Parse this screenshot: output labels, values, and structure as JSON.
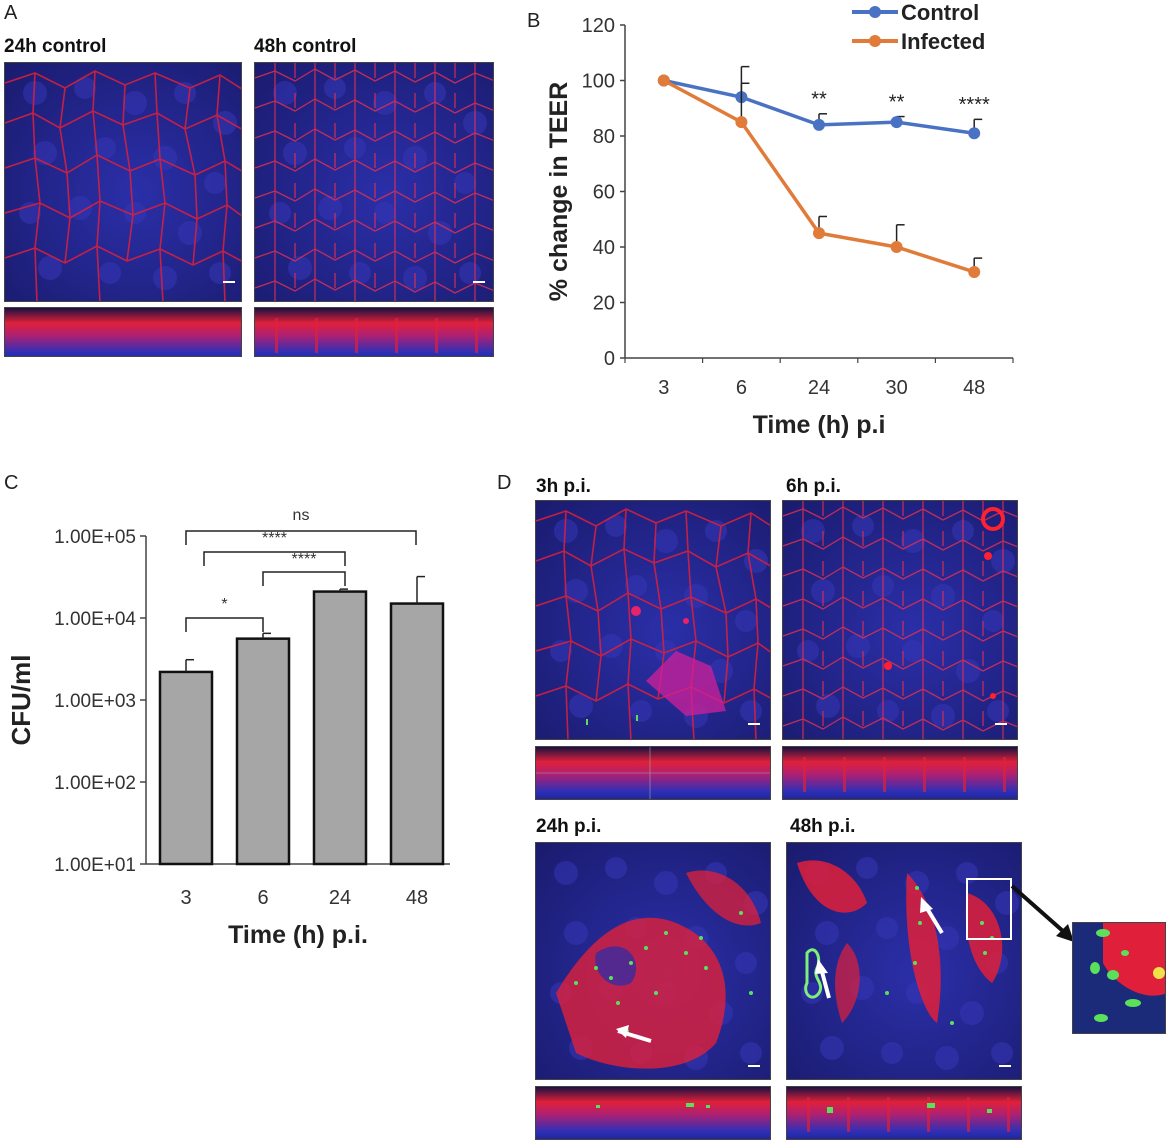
{
  "panels": {
    "a": {
      "letter": "A",
      "image_titles": [
        "24h control",
        "48h control"
      ]
    },
    "b": {
      "letter": "B",
      "significance": [
        "**",
        "**",
        "****"
      ]
    },
    "c": {
      "letter": "C",
      "significance": [
        {
          "text": "ns",
          "from": 0,
          "to": 3
        },
        {
          "text": "****",
          "from": 1,
          "to": 2
        },
        {
          "text": "****",
          "from": 1,
          "to": 2
        },
        {
          "text": "*",
          "from": 0,
          "to": 1
        }
      ]
    },
    "d": {
      "letter": "D",
      "image_titles": [
        "3h p.i.",
        "6h p.i.",
        "24h p.i.",
        "48h p.i."
      ]
    }
  },
  "colors": {
    "control": "#4a72c4",
    "infected": "#e07b39",
    "bar_fill": "#a6a6a6",
    "membrane": "#e0203a",
    "nucleus": "#2a2a9c",
    "bacteria": "#5be05b"
  },
  "chart_data": [
    {
      "type": "line",
      "panel": "B",
      "x": [
        "3",
        "6",
        "24",
        "30",
        "48"
      ],
      "xlabel": "Time (h) p.i",
      "ylabel": "% change in TEER",
      "ylim": [
        0,
        120
      ],
      "yticks": [
        0,
        20,
        40,
        60,
        80,
        100,
        120
      ],
      "legend": "top-right",
      "series": [
        {
          "name": "Control",
          "values": [
            100,
            94,
            84,
            85,
            81
          ],
          "error": [
            0,
            11,
            4,
            2,
            5
          ]
        },
        {
          "name": "Infected",
          "values": [
            100,
            85,
            45,
            40,
            31
          ],
          "error": [
            0,
            14,
            6,
            8,
            5
          ]
        }
      ]
    },
    {
      "type": "bar",
      "panel": "C",
      "categories": [
        "3",
        "6",
        "24",
        "48"
      ],
      "values": [
        2200,
        5600,
        21000,
        15000
      ],
      "error": [
        900,
        900,
        1500,
        17000
      ],
      "xlabel": "Time (h) p.i.",
      "ylabel": "CFU/ml",
      "yscale": "log",
      "ylim": [
        10,
        100000
      ],
      "yticks": [
        "1.00E+01",
        "1.00E+02",
        "1.00E+03",
        "1.00E+04",
        "1.00E+05"
      ]
    }
  ]
}
